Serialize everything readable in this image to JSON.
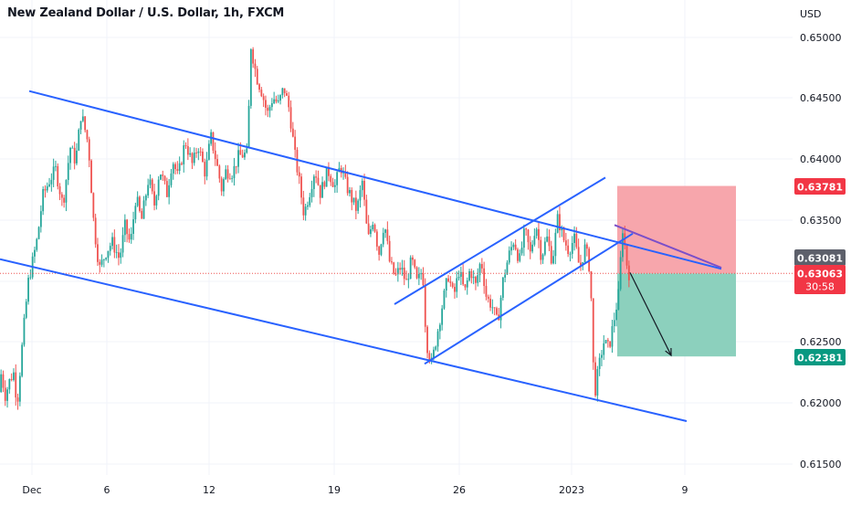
{
  "header": {
    "title": "New Zealand Dollar / U.S. Dollar, 1h, FXCM",
    "currency": "USD"
  },
  "colors": {
    "up": "#26a69a",
    "down": "#ef5350",
    "trendline": "#2962ff",
    "purple_line": "#7b4fc9",
    "stop_zone": "#f7a1a8",
    "target_zone": "#86cdb9",
    "stop_label": "#f23645",
    "target_label": "#089981",
    "current_label": "#f23645",
    "prev_label": "#5d606b"
  },
  "chart_data": {
    "type": "candlestick",
    "symbol": "NZDUSD",
    "timeframe": "1h",
    "source": "FXCM",
    "y_axis": {
      "ylim": [
        0.6137,
        0.6517
      ],
      "ticks": [
        "0.65000",
        "0.64500",
        "0.64000",
        "0.63500",
        "0.63000",
        "0.62500",
        "0.62000",
        "0.61500"
      ]
    },
    "x_axis": {
      "ticks": [
        "Dec",
        "6",
        "12",
        "19",
        "26",
        "2023",
        "9"
      ]
    },
    "price_path": [
      [
        0.6209,
        0
      ],
      [
        0.6228,
        3
      ],
      [
        0.6204,
        6
      ],
      [
        0.6219,
        12
      ],
      [
        0.6225,
        16
      ],
      [
        0.6199,
        20
      ],
      [
        0.6252,
        26
      ],
      [
        0.6299,
        32
      ],
      [
        0.6313,
        36
      ],
      [
        0.6335,
        42
      ],
      [
        0.637,
        48
      ],
      [
        0.6382,
        55
      ],
      [
        0.6392,
        62
      ],
      [
        0.6362,
        70
      ],
      [
        0.641,
        78
      ],
      [
        0.6398,
        84
      ],
      [
        0.6438,
        90
      ],
      [
        0.6412,
        98
      ],
      [
        0.6345,
        104
      ],
      [
        0.631,
        110
      ],
      [
        0.6325,
        118
      ],
      [
        0.6332,
        124
      ],
      [
        0.6318,
        132
      ],
      [
        0.6345,
        138
      ],
      [
        0.633,
        144
      ],
      [
        0.637,
        150
      ],
      [
        0.6349,
        156
      ],
      [
        0.6385,
        164
      ],
      [
        0.6362,
        170
      ],
      [
        0.6392,
        176
      ],
      [
        0.6372,
        184
      ],
      [
        0.64,
        190
      ],
      [
        0.6385,
        196
      ],
      [
        0.6415,
        204
      ],
      [
        0.6395,
        212
      ],
      [
        0.6412,
        218
      ],
      [
        0.6388,
        226
      ],
      [
        0.6419,
        232
      ],
      [
        0.6398,
        238
      ],
      [
        0.6375,
        244
      ],
      [
        0.639,
        248
      ],
      [
        0.6389,
        256
      ],
      [
        0.6402,
        262
      ],
      [
        0.6404,
        268
      ],
      [
        0.6404,
        272
      ],
      [
        0.6493,
        276
      ],
      [
        0.6468,
        282
      ],
      [
        0.6455,
        288
      ],
      [
        0.6437,
        294
      ],
      [
        0.6451,
        300
      ],
      [
        0.6445,
        306
      ],
      [
        0.6459,
        312
      ],
      [
        0.6441,
        318
      ],
      [
        0.6404,
        324
      ],
      [
        0.6386,
        328
      ],
      [
        0.6355,
        334
      ],
      [
        0.6372,
        340
      ],
      [
        0.6392,
        346
      ],
      [
        0.6372,
        352
      ],
      [
        0.6391,
        360
      ],
      [
        0.6378,
        368
      ],
      [
        0.6395,
        374
      ],
      [
        0.6379,
        380
      ],
      [
        0.6368,
        386
      ],
      [
        0.6358,
        392
      ],
      [
        0.6382,
        398
      ],
      [
        0.6333,
        404
      ],
      [
        0.6352,
        410
      ],
      [
        0.6322,
        416
      ],
      [
        0.6349,
        422
      ],
      [
        0.6315,
        428
      ],
      [
        0.6303,
        434
      ],
      [
        0.6312,
        440
      ],
      [
        0.6298,
        446
      ],
      [
        0.6318,
        452
      ],
      [
        0.6298,
        458
      ],
      [
        0.631,
        464
      ],
      [
        0.625,
        468
      ],
      [
        0.6232,
        474
      ],
      [
        0.6257,
        480
      ],
      [
        0.6282,
        486
      ],
      [
        0.6305,
        492
      ],
      [
        0.6287,
        498
      ],
      [
        0.6309,
        504
      ],
      [
        0.629,
        510
      ],
      [
        0.631,
        516
      ],
      [
        0.6296,
        522
      ],
      [
        0.6318,
        528
      ],
      [
        0.6286,
        534
      ],
      [
        0.628,
        540
      ],
      [
        0.6265,
        546
      ],
      [
        0.63,
        552
      ],
      [
        0.632,
        558
      ],
      [
        0.6334,
        564
      ],
      [
        0.6316,
        570
      ],
      [
        0.6342,
        576
      ],
      [
        0.6322,
        582
      ],
      [
        0.6348,
        588
      ],
      [
        0.632,
        594
      ],
      [
        0.6336,
        600
      ],
      [
        0.6316,
        606
      ],
      [
        0.6352,
        612
      ],
      [
        0.6335,
        618
      ],
      [
        0.6325,
        624
      ],
      [
        0.6335,
        630
      ],
      [
        0.631,
        636
      ],
      [
        0.6328,
        642
      ],
      [
        0.6315,
        646
      ],
      [
        0.63,
        648
      ],
      [
        0.6205,
        652
      ],
      [
        0.6225,
        656
      ],
      [
        0.625,
        662
      ],
      [
        0.6245,
        668
      ],
      [
        0.627,
        674
      ],
      [
        0.6295,
        680
      ],
      [
        0.635,
        682
      ],
      [
        0.6325,
        686
      ],
      [
        0.6306,
        689
      ]
    ],
    "annotations": {
      "descending_channel_upper": [
        [
          0.6456,
          32
        ],
        [
          0.631,
          790
        ]
      ],
      "descending_channel_lower": [
        [
          0.6318,
          0
        ],
        [
          0.6185,
          752
        ]
      ],
      "rising_channel_upper": [
        [
          0.6281,
          432
        ],
        [
          0.6385,
          663
        ]
      ],
      "rising_channel_lower": [
        [
          0.6232,
          465
        ],
        [
          0.6339,
          693
        ]
      ],
      "purple_trendline": [
        [
          0.6346,
          673
        ],
        [
          0.6311,
          790
        ]
      ],
      "arrow": [
        [
          0.6307,
          690
        ],
        [
          0.6239,
          735
        ]
      ],
      "position_box": {
        "time_range": [
          676,
          806
        ],
        "stop": 0.63781,
        "entry": 0.63063,
        "target": 0.62381
      }
    },
    "price_labels": [
      {
        "id": "stop",
        "value": "0.63781"
      },
      {
        "id": "prev",
        "value": "0.63081"
      },
      {
        "id": "current",
        "value": "0.63063",
        "countdown": "30:58"
      },
      {
        "id": "target",
        "value": "0.62381"
      }
    ]
  }
}
